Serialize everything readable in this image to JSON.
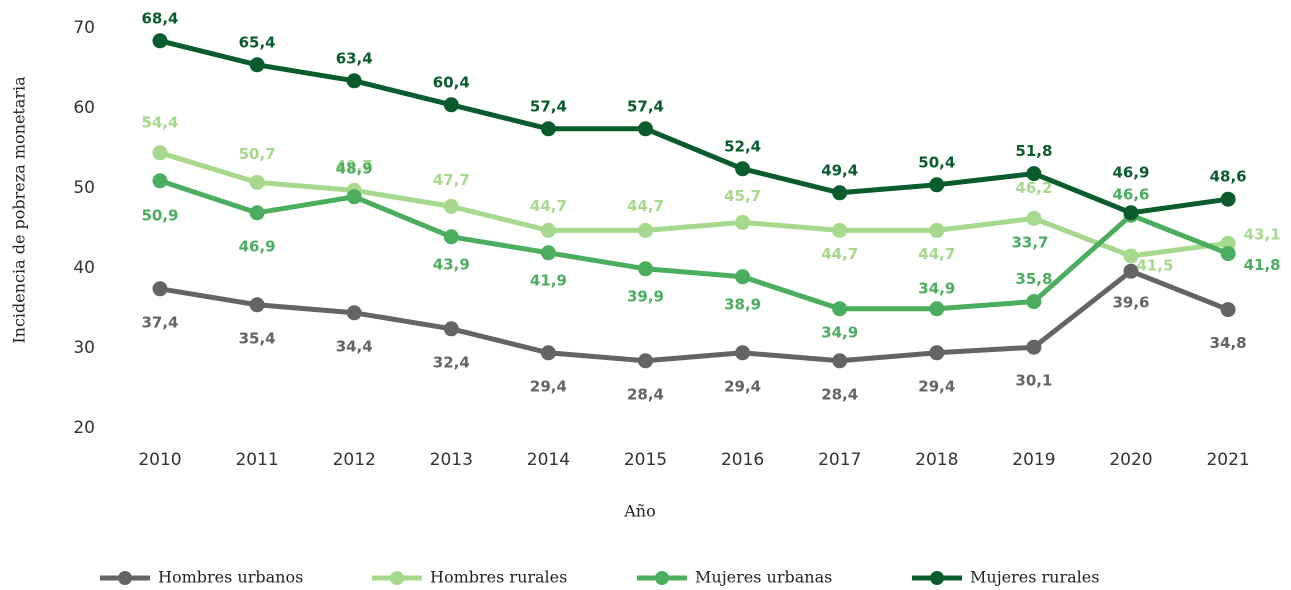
{
  "chart_data": {
    "type": "line",
    "x_label": "Año",
    "y_label": "Incidencia de pobreza monetaria",
    "categories": [
      "2010",
      "2011",
      "2012",
      "2013",
      "2014",
      "2015",
      "2016",
      "2017",
      "2018",
      "2019",
      "2020",
      "2021"
    ],
    "ylim": [
      20,
      70
    ],
    "yticks": [
      20,
      30,
      40,
      50,
      60,
      70
    ],
    "grid": false,
    "legend": "bottom",
    "series": [
      {
        "name": "Hombres urbanos",
        "color": "#636466",
        "values": [
          37.4,
          35.4,
          34.4,
          32.4,
          29.4,
          28.4,
          29.4,
          28.4,
          29.4,
          30.1,
          39.6,
          34.8
        ],
        "value_labels": [
          "37,4",
          "35,4",
          "34,4",
          "32,4",
          "29,4",
          "28,4",
          "29,4",
          "28,4",
          "29,4",
          "30,1",
          "39,6",
          "34,8"
        ]
      },
      {
        "name": "Hombres rurales",
        "color": "#a6d98d",
        "values": [
          54.4,
          50.7,
          49.7,
          47.7,
          44.7,
          44.7,
          45.7,
          44.7,
          44.7,
          46.2,
          41.5,
          43.1
        ],
        "value_labels": [
          "54,4",
          "50,7",
          "49,7",
          "47,7",
          "44,7",
          "44,7",
          "45,7",
          "44,7",
          "44,7",
          "46,2",
          "41,5",
          "43,1"
        ]
      },
      {
        "name": "Mujeres urbanas",
        "color": "#4bae5e",
        "values": [
          50.9,
          46.9,
          48.9,
          43.9,
          41.9,
          39.9,
          38.9,
          34.9,
          34.9,
          35.8,
          46.6,
          41.8
        ],
        "value_labels": [
          "50,9",
          "46,9",
          "48,9",
          "43,9",
          "41,9",
          "39,9",
          "38,9",
          "34,9",
          "34,9",
          "35,8",
          "46,6",
          "41,8"
        ]
      },
      {
        "name": "Mujeres rurales",
        "color": "#0a5c2c",
        "values": [
          68.4,
          65.4,
          63.4,
          60.4,
          57.4,
          57.4,
          52.4,
          49.4,
          50.4,
          51.8,
          46.9,
          48.6
        ],
        "value_labels": [
          "68,4",
          "65,4",
          "63,4",
          "60,4",
          "57,4",
          "57,4",
          "52,4",
          "49,4",
          "50,4",
          "51,8",
          "46,9",
          "48,6"
        ]
      }
    ],
    "annotations": [
      {
        "text": "33,7",
        "color": "#4bae5e"
      }
    ]
  }
}
